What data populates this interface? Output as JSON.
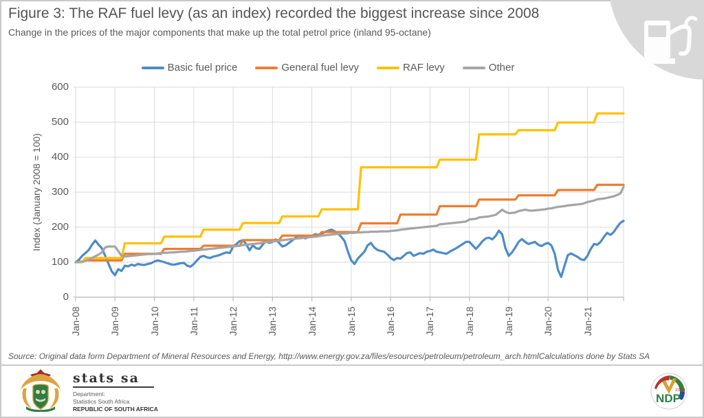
{
  "header": {
    "title": "Figure 3: The RAF fuel levy (as an index) recorded the biggest increase since 2008",
    "subtitle": "Change in the prices of the major components that make up the total petrol price (inland 95-octane)"
  },
  "icons": {
    "corner_icon": "fuel-pump",
    "left_logo": "sa-coat-of-arms",
    "right_logo": "ndp-2030-emblem"
  },
  "colors": {
    "basic_fuel_price": "#4E8BC8",
    "general_fuel_levy": "#ED7D31",
    "raf_levy": "#FFC000",
    "other": "#A5A5A5",
    "gridline": "#D9D9D9",
    "axis": "#BFBFBF",
    "text": "#595959",
    "decor_gray": "#D8D8D8",
    "ndp_green": "#2E7D46",
    "ndp_red": "#B5342A"
  },
  "chart_data": {
    "type": "line",
    "title": "Figure 3: The RAF fuel levy (as an index) recorded the biggest increase since 2008",
    "subtitle": "Change in the prices of the major components that make up the total petrol price (inland 95-octane)",
    "xlabel": "",
    "ylabel": "Index (January 2008 = 100)",
    "ylim": [
      0,
      600
    ],
    "yticks": [
      0,
      100,
      200,
      300,
      400,
      500,
      600
    ],
    "grid": true,
    "legend_position": "top",
    "x_unit": "monthly, Jan-2008 to Dec-2021",
    "x_tick_labels": [
      "Jan-08",
      "Jan-09",
      "Jan-10",
      "Jan-11",
      "Jan-12",
      "Jan-13",
      "Jan-14",
      "Jan-15",
      "Jan-16",
      "Jan-17",
      "Jan-18",
      "Jan-19",
      "Jan-20",
      "Jan-21"
    ],
    "series": [
      {
        "name": "Basic fuel price",
        "color": "#4E8BC8",
        "values": [
          100,
          107,
          118,
          126,
          135,
          150,
          162,
          150,
          140,
          118,
          96,
          74,
          63,
          80,
          75,
          90,
          88,
          93,
          90,
          95,
          93,
          92,
          95,
          97,
          102,
          105,
          103,
          100,
          97,
          94,
          93,
          95,
          97,
          98,
          90,
          87,
          95,
          105,
          115,
          118,
          114,
          112,
          116,
          118,
          121,
          125,
          128,
          126,
          145,
          152,
          160,
          163,
          152,
          134,
          148,
          140,
          138,
          150,
          160,
          155,
          158,
          165,
          155,
          145,
          148,
          155,
          162,
          170,
          176,
          172,
          168,
          172,
          175,
          180,
          178,
          182,
          186,
          190,
          193,
          188,
          182,
          172,
          160,
          130,
          105,
          95,
          110,
          120,
          130,
          148,
          155,
          142,
          135,
          132,
          130,
          122,
          112,
          106,
          112,
          110,
          118,
          126,
          128,
          118,
          122,
          126,
          124,
          130,
          132,
          136,
          130,
          128,
          126,
          124,
          130,
          135,
          140,
          146,
          152,
          158,
          158,
          148,
          138,
          148,
          160,
          168,
          170,
          165,
          175,
          190,
          180,
          140,
          118,
          128,
          142,
          158,
          166,
          158,
          152,
          155,
          158,
          150,
          146,
          152,
          155,
          148,
          125,
          78,
          58,
          90,
          120,
          125,
          120,
          115,
          108,
          106,
          118,
          138,
          152,
          150,
          158,
          172,
          184,
          178,
          186,
          200,
          212,
          218
        ]
      },
      {
        "name": "General fuel levy",
        "color": "#ED7D31",
        "values": [
          100,
          100,
          100,
          105,
          105,
          105,
          105,
          105,
          105,
          105,
          105,
          105,
          105,
          105,
          105,
          124,
          124,
          124,
          124,
          124,
          124,
          124,
          124,
          124,
          124,
          124,
          124,
          138,
          138,
          138,
          138,
          138,
          138,
          138,
          138,
          138,
          138,
          138,
          138,
          147,
          147,
          147,
          147,
          147,
          147,
          147,
          147,
          147,
          147,
          147,
          147,
          163,
          163,
          163,
          163,
          163,
          163,
          163,
          163,
          163,
          163,
          163,
          163,
          176,
          176,
          176,
          176,
          176,
          176,
          176,
          176,
          176,
          176,
          176,
          176,
          186,
          186,
          186,
          186,
          186,
          186,
          186,
          186,
          186,
          186,
          186,
          186,
          211,
          211,
          211,
          211,
          211,
          211,
          211,
          211,
          211,
          211,
          211,
          211,
          236,
          236,
          236,
          236,
          236,
          236,
          236,
          236,
          236,
          236,
          236,
          236,
          260,
          260,
          260,
          260,
          260,
          260,
          260,
          260,
          260,
          260,
          260,
          260,
          279,
          279,
          279,
          279,
          279,
          279,
          279,
          279,
          279,
          279,
          279,
          279,
          291,
          291,
          291,
          291,
          291,
          291,
          291,
          291,
          291,
          291,
          291,
          291,
          306,
          306,
          306,
          306,
          306,
          306,
          306,
          306,
          306,
          306,
          306,
          306,
          321,
          321,
          321,
          321,
          321,
          321,
          321,
          321,
          321
        ]
      },
      {
        "name": "RAF levy",
        "color": "#FFC000",
        "values": [
          100,
          100,
          100,
          112,
          112,
          112,
          112,
          112,
          112,
          112,
          112,
          112,
          112,
          112,
          112,
          154,
          154,
          154,
          154,
          154,
          154,
          154,
          154,
          154,
          154,
          154,
          154,
          173,
          173,
          173,
          173,
          173,
          173,
          173,
          173,
          173,
          173,
          173,
          173,
          193,
          193,
          193,
          193,
          193,
          193,
          193,
          193,
          193,
          193,
          193,
          193,
          212,
          212,
          212,
          212,
          212,
          212,
          212,
          212,
          212,
          212,
          212,
          212,
          231,
          231,
          231,
          231,
          231,
          231,
          231,
          231,
          231,
          231,
          231,
          231,
          251,
          251,
          251,
          251,
          251,
          251,
          251,
          251,
          251,
          251,
          251,
          251,
          371,
          371,
          371,
          371,
          371,
          371,
          371,
          371,
          371,
          371,
          371,
          371,
          371,
          371,
          371,
          371,
          371,
          371,
          371,
          371,
          371,
          371,
          371,
          371,
          393,
          393,
          393,
          393,
          393,
          393,
          393,
          393,
          393,
          393,
          393,
          393,
          465,
          465,
          465,
          465,
          465,
          465,
          465,
          465,
          465,
          465,
          465,
          465,
          477,
          477,
          477,
          477,
          477,
          477,
          477,
          477,
          477,
          477,
          477,
          477,
          499,
          499,
          499,
          499,
          499,
          499,
          499,
          499,
          499,
          499,
          499,
          499,
          525,
          525,
          525,
          525,
          525,
          525,
          525,
          525,
          525
        ]
      },
      {
        "name": "Other",
        "color": "#A5A5A5",
        "values": [
          100,
          101,
          102,
          104,
          107,
          112,
          117,
          122,
          128,
          142,
          145,
          145,
          145,
          132,
          118,
          116,
          117,
          118,
          119,
          120,
          121,
          122,
          123,
          123,
          124,
          125,
          126,
          127,
          127,
          128,
          128,
          129,
          130,
          130,
          131,
          132,
          133,
          134,
          135,
          136,
          137,
          138,
          139,
          140,
          141,
          142,
          143,
          144,
          145,
          146,
          147,
          149,
          150,
          151,
          152,
          153,
          154,
          156,
          157,
          158,
          159,
          160,
          161,
          163,
          164,
          165,
          166,
          167,
          168,
          169,
          170,
          171,
          172,
          173,
          174,
          176,
          177,
          178,
          179,
          180,
          181,
          182,
          182,
          183,
          184,
          184,
          185,
          185,
          186,
          186,
          187,
          187,
          187,
          188,
          188,
          188,
          189,
          190,
          191,
          193,
          194,
          195,
          196,
          197,
          198,
          199,
          200,
          201,
          202,
          203,
          204,
          208,
          209,
          210,
          211,
          212,
          213,
          214,
          215,
          216,
          222,
          223,
          224,
          228,
          229,
          230,
          231,
          233,
          235,
          242,
          250,
          244,
          240,
          241,
          242,
          246,
          248,
          250,
          248,
          247,
          248,
          249,
          250,
          251,
          253,
          254,
          256,
          258,
          259,
          260,
          262,
          263,
          264,
          265,
          266,
          268,
          272,
          274,
          276,
          280,
          281,
          282,
          284,
          286,
          288,
          292,
          296,
          315
        ]
      }
    ]
  },
  "source": {
    "text": "Source: Original data form Department of Mineral Resources and Energy, http://www.energy.gov.za/files/esources/petroleum/petroleum_arch.html",
    "credit": "Calculations done by Stats SA"
  },
  "footer": {
    "statssa": {
      "brand": "stats sa",
      "dept_line1": "Department:",
      "dept_line2": "Statistics South Africa",
      "dept_line3": "REPUBLIC OF SOUTH AFRICA"
    },
    "ndp": {
      "label": "NDP",
      "year": "2030"
    }
  }
}
